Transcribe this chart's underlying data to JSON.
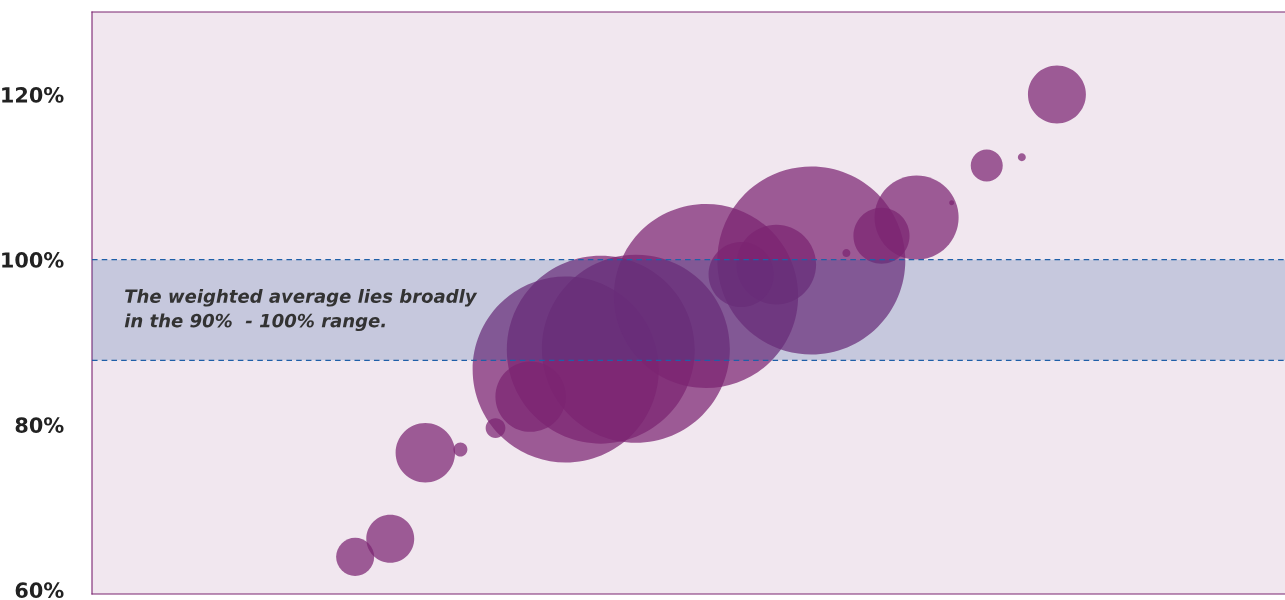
{
  "chart_data": {
    "type": "bubble",
    "categories": [
      null,
      null,
      null,
      null,
      null,
      null,
      null,
      null,
      null,
      null,
      null,
      null,
      null,
      null,
      null,
      null,
      null,
      null,
      null,
      null,
      null,
      null,
      null,
      null,
      null,
      null,
      null,
      null,
      null,
      null,
      null,
      null,
      null,
      null
    ],
    "series": [
      {
        "color": "#7b2471",
        "values": [
          null,
          null,
          null,
          null,
          null,
          null,
          null,
          64.0,
          66.2,
          76.6,
          77.0,
          79.6,
          83.4,
          86.7,
          89.1,
          89.2,
          null,
          95.6,
          98.2,
          99.4,
          99.9,
          100.8,
          102.9,
          105.1,
          106.9,
          111.4,
          112.4,
          120.0,
          null,
          null,
          null,
          null,
          null,
          null
        ],
        "sizes": [
          null,
          null,
          null,
          null,
          null,
          null,
          null,
          0.041,
          0.065,
          0.1,
          0.0055,
          0.011,
          0.14,
          0.98,
          1,
          1,
          null,
          0.96,
          0.12,
          0.18,
          1,
          0.0018,
          0.089,
          0.2,
          0.0007,
          0.029,
          0.0018,
          0.095,
          null,
          null,
          null,
          null,
          null,
          null
        ]
      }
    ],
    "ylim": [
      59.5,
      130
    ],
    "yticks": [
      {
        "value": 60,
        "label": "60%"
      },
      {
        "value": 80,
        "label": "80%"
      },
      {
        "value": 100,
        "label": "100%"
      },
      {
        "value": 120,
        "label": "120%"
      }
    ],
    "tick_labels": "y",
    "grid": false,
    "ref_lines": [
      {
        "axis": "y",
        "value": 100,
        "color": "#1f5fa8",
        "line_style": "dashed"
      },
      {
        "axis": "y",
        "value": 87.8,
        "color": "#1f5fa8",
        "line_style": "dashed"
      }
    ],
    "bands": [
      {
        "axis": "y",
        "from": 87.8,
        "to": 100,
        "label": "The weighted average lies broadly\nin the 90%  - 100% range.",
        "color": "#1f4e96"
      }
    ]
  }
}
